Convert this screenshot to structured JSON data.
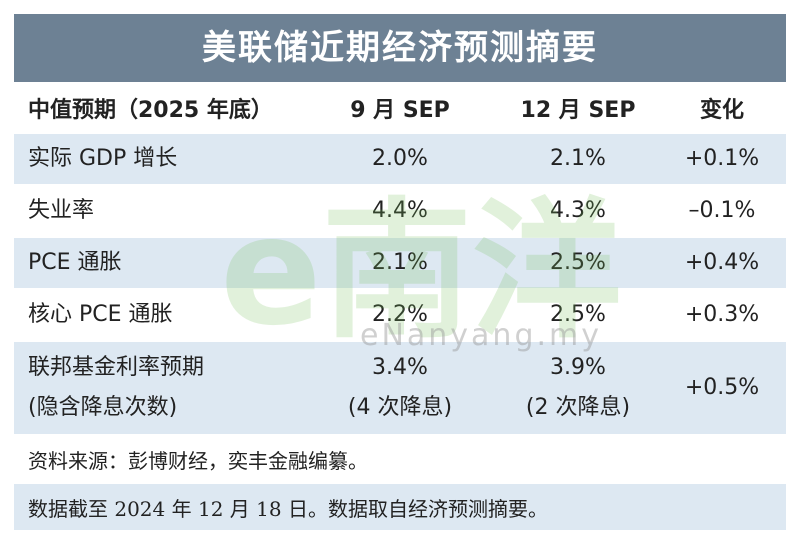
{
  "header": {
    "title": "美联储近期经济预测摘要"
  },
  "table": {
    "columns": [
      "中值预期（2025 年底）",
      "9 月 SEP",
      "12 月 SEP",
      "变化"
    ],
    "rows": [
      [
        [
          "实际 GDP 增长"
        ],
        [
          "2.0%"
        ],
        [
          "2.1%"
        ],
        [
          "+0.1%"
        ]
      ],
      [
        [
          "失业率"
        ],
        [
          "4.4%"
        ],
        [
          "4.3%"
        ],
        [
          "–0.1%"
        ]
      ],
      [
        [
          "PCE 通胀"
        ],
        [
          "2.1%"
        ],
        [
          "2.5%"
        ],
        [
          "+0.4%"
        ]
      ],
      [
        [
          "核心 PCE 通胀"
        ],
        [
          "2.2%"
        ],
        [
          "2.5%"
        ],
        [
          "+0.3%"
        ]
      ],
      [
        [
          "联邦基金利率预期",
          "(隐含降息次数)"
        ],
        [
          "3.4%",
          "(4 次降息)"
        ],
        [
          "3.9%",
          "(2 次降息)"
        ],
        [
          "+0.5%"
        ]
      ]
    ]
  },
  "notes": [
    "资料来源：彭博财经，奕丰金融编纂。",
    "数据截至 2024 年 12 月 18 日。数据取自经济预测摘要。"
  ],
  "watermark": {
    "logo": "e南洋",
    "site": "eNanyang.my"
  }
}
